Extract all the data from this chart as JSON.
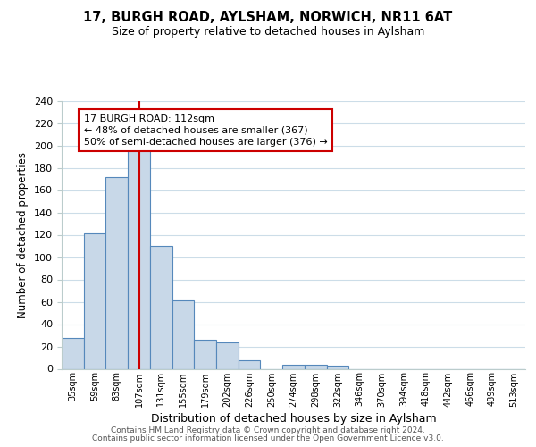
{
  "title": "17, BURGH ROAD, AYLSHAM, NORWICH, NR11 6AT",
  "subtitle": "Size of property relative to detached houses in Aylsham",
  "xlabel": "Distribution of detached houses by size in Aylsham",
  "ylabel": "Number of detached properties",
  "bar_color": "#c8d8e8",
  "bar_edge_color": "#5588bb",
  "categories": [
    "35sqm",
    "59sqm",
    "83sqm",
    "107sqm",
    "131sqm",
    "155sqm",
    "179sqm",
    "202sqm",
    "226sqm",
    "250sqm",
    "274sqm",
    "298sqm",
    "322sqm",
    "346sqm",
    "370sqm",
    "394sqm",
    "418sqm",
    "442sqm",
    "466sqm",
    "489sqm",
    "513sqm"
  ],
  "values": [
    28,
    121,
    172,
    197,
    110,
    61,
    26,
    24,
    8,
    0,
    4,
    4,
    3,
    0,
    0,
    0,
    0,
    0,
    0,
    0,
    0
  ],
  "ylim": [
    0,
    240
  ],
  "yticks": [
    0,
    20,
    40,
    60,
    80,
    100,
    120,
    140,
    160,
    180,
    200,
    220,
    240
  ],
  "vline_x": 3,
  "vline_color": "#cc0000",
  "annotation_title": "17 BURGH ROAD: 112sqm",
  "annotation_line1": "← 48% of detached houses are smaller (367)",
  "annotation_line2": "50% of semi-detached houses are larger (376) →",
  "annotation_box_color": "#ffffff",
  "annotation_box_edge_color": "#cc0000",
  "footer1": "Contains HM Land Registry data © Crown copyright and database right 2024.",
  "footer2": "Contains public sector information licensed under the Open Government Licence v3.0.",
  "background_color": "#ffffff",
  "grid_color": "#ccdde8"
}
